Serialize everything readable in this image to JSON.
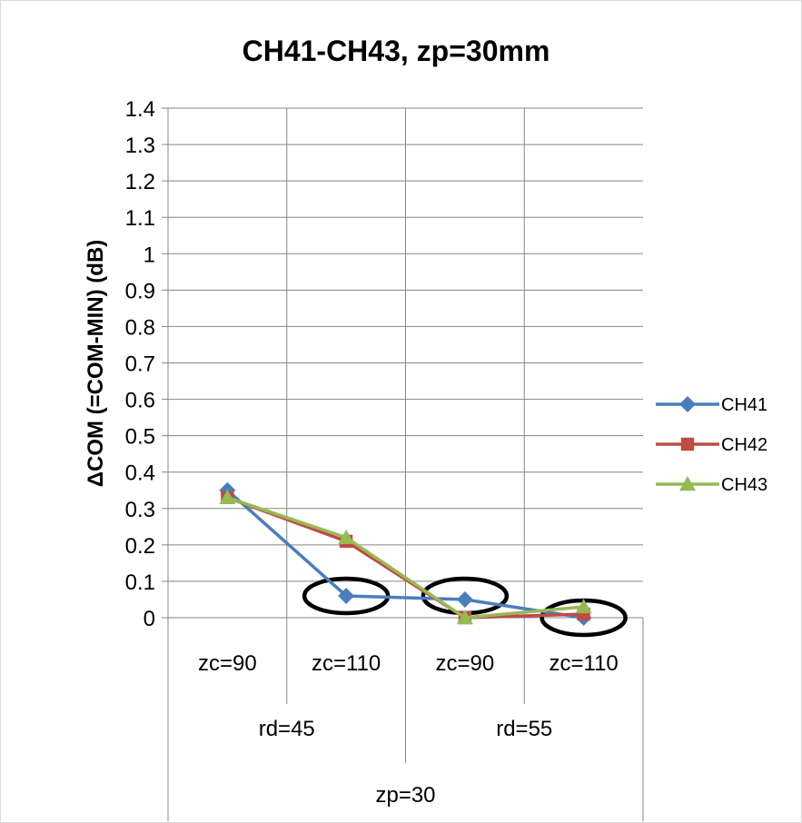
{
  "chart_data": {
    "type": "line",
    "title": "CH41-CH43, zp=30mm",
    "ylabel": "ΔCOM (=COM-MIN) (dB)",
    "xlabel": "",
    "ylim": [
      0,
      1.4
    ],
    "yticks": [
      "0",
      "0.1",
      "0.2",
      "0.3",
      "0.4",
      "0.5",
      "0.6",
      "0.7",
      "0.8",
      "0.9",
      "1",
      "1.1",
      "1.2",
      "1.3",
      "1.4"
    ],
    "categories": [
      "zc=90",
      "zc=110",
      "zc=90",
      "zc=110"
    ],
    "group_level2": [
      "rd=45",
      "rd=55"
    ],
    "group_level3": [
      "zp=30"
    ],
    "grid": true,
    "legend_position": "right",
    "series": [
      {
        "name": "CH41",
        "values": [
          0.35,
          0.06,
          0.05,
          0.0
        ],
        "color": "#4a7ebb",
        "marker": "diamond"
      },
      {
        "name": "CH42",
        "values": [
          0.33,
          0.21,
          0.0,
          0.01
        ],
        "color": "#be4b48",
        "marker": "square"
      },
      {
        "name": "CH43",
        "values": [
          0.33,
          0.22,
          0.0,
          0.03
        ],
        "color": "#98b954",
        "marker": "triangle"
      }
    ],
    "annotations": [
      {
        "shape": "ellipse",
        "category_index": 1,
        "value": 0.06
      },
      {
        "shape": "ellipse",
        "category_index": 2,
        "value": 0.06
      },
      {
        "shape": "ellipse",
        "category_index": 3,
        "value": 0.0
      }
    ]
  }
}
